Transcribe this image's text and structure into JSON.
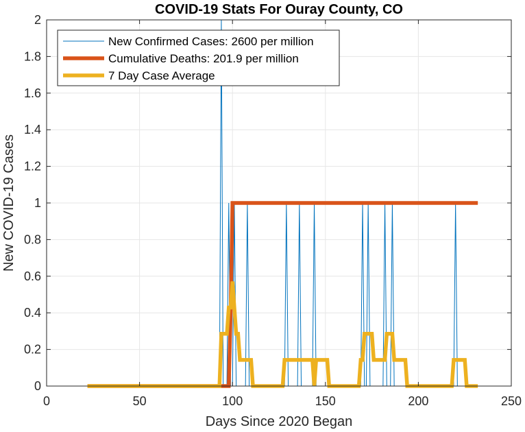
{
  "chart_data": {
    "type": "line",
    "title": "COVID-19 Stats For Ouray County, CO",
    "xlabel": "Days Since 2020 Began",
    "ylabel": "New COVID-19 Cases",
    "xlim": [
      0,
      250
    ],
    "ylim": [
      0,
      2
    ],
    "xticks": [
      0,
      50,
      100,
      150,
      200,
      250
    ],
    "xtick_labels": [
      "0",
      "50",
      "100",
      "150",
      "200",
      "250"
    ],
    "yticks": [
      0,
      0.2,
      0.4,
      0.6,
      0.8,
      1,
      1.2,
      1.4,
      1.6,
      1.8,
      2
    ],
    "ytick_labels": [
      "0",
      "0.2",
      "0.4",
      "0.6",
      "0.8",
      "1",
      "1.2",
      "1.4",
      "1.6",
      "1.8",
      "2"
    ],
    "grid": true,
    "legend_position": "top-left",
    "series": [
      {
        "name": "New Confirmed Cases: 2600 per million",
        "color": "#0072BD",
        "style": "thin",
        "x": [
          22,
          93,
          94,
          95,
          96,
          97,
          98,
          99,
          100,
          101,
          102,
          106,
          107,
          108,
          109,
          128,
          129,
          130,
          135,
          136,
          137,
          143,
          144,
          145,
          169,
          170,
          171,
          172,
          173,
          174,
          181,
          182,
          183,
          185,
          186,
          187,
          219,
          220,
          221,
          232
        ],
        "y": [
          0,
          0,
          2,
          0,
          0,
          0,
          1,
          0,
          0,
          1,
          0,
          0,
          0,
          1,
          0,
          0,
          1,
          0,
          0,
          1,
          0,
          0,
          1,
          0,
          0,
          1,
          0,
          0,
          1,
          0,
          0,
          1,
          0,
          0,
          1,
          0,
          0,
          1,
          0,
          0
        ]
      },
      {
        "name": "Cumulative Deaths: 201.9 per million",
        "color": "#D95319",
        "style": "thick",
        "x": [
          22,
          97,
          98,
          99,
          100,
          101,
          232
        ],
        "y": [
          0,
          0,
          0,
          0.4,
          1,
          1,
          1
        ]
      },
      {
        "name": "7 Day Case Average",
        "color": "#EDB120",
        "style": "thick",
        "x": [
          22,
          93,
          94,
          95,
          96,
          97,
          98,
          99,
          100,
          101,
          102,
          103,
          104,
          105,
          106,
          107,
          108,
          109,
          110,
          111,
          127,
          128,
          129,
          130,
          131,
          132,
          133,
          134,
          135,
          136,
          137,
          138,
          139,
          140,
          141,
          142,
          143,
          144,
          145,
          146,
          147,
          148,
          149,
          150,
          151,
          152,
          168,
          169,
          170,
          171,
          172,
          173,
          174,
          175,
          176,
          177,
          178,
          179,
          180,
          181,
          182,
          183,
          184,
          185,
          186,
          187,
          188,
          189,
          190,
          191,
          192,
          193,
          194,
          218,
          219,
          220,
          221,
          222,
          223,
          224,
          225,
          226,
          227,
          228,
          232
        ],
        "y": [
          0,
          0,
          0.2857,
          0.2857,
          0.2857,
          0.2857,
          0.4286,
          0.4286,
          0.5714,
          0.4286,
          0.2857,
          0.2857,
          0.1429,
          0.1429,
          0.1429,
          0.1429,
          0.1429,
          0.1429,
          0.1429,
          0,
          0,
          0.1429,
          0.1429,
          0.1429,
          0.1429,
          0.1429,
          0.1429,
          0.1429,
          0.1429,
          0.1429,
          0.1429,
          0.1429,
          0.1429,
          0.1429,
          0.1429,
          0.1429,
          0.1429,
          0,
          0.1429,
          0.1429,
          0.1429,
          0.1429,
          0.1429,
          0.1429,
          0.1429,
          0,
          0,
          0.1429,
          0.1429,
          0.2857,
          0.2857,
          0.2857,
          0.2857,
          0.2857,
          0.1429,
          0.1429,
          0.1429,
          0.1429,
          0.1429,
          0.1429,
          0.1429,
          0.2857,
          0.2857,
          0.2857,
          0.2857,
          0.1429,
          0.1429,
          0.1429,
          0.1429,
          0.1429,
          0.1429,
          0.1429,
          0,
          0,
          0.1429,
          0.1429,
          0.1429,
          0.1429,
          0.1429,
          0.1429,
          0.1429,
          0,
          0,
          0,
          0
        ]
      }
    ]
  }
}
